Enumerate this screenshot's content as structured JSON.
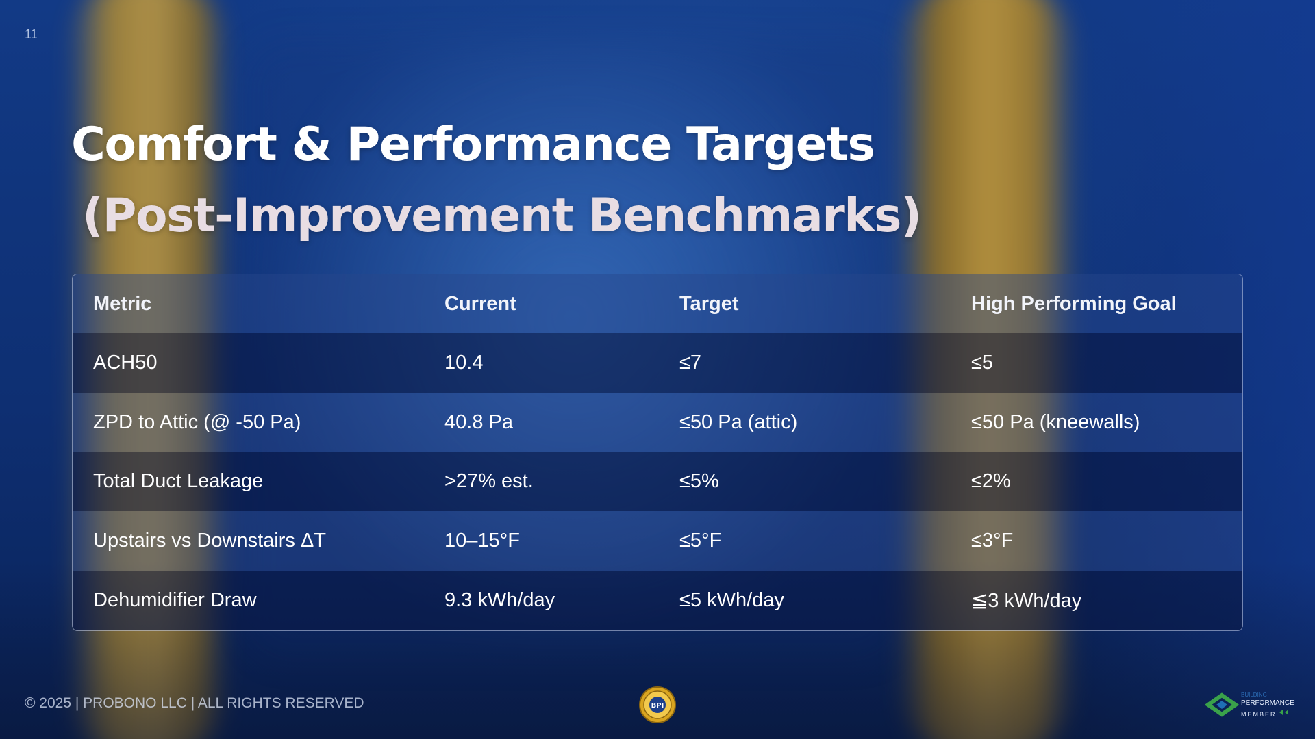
{
  "page": {
    "number": "11"
  },
  "title": {
    "line1": "Comfort & Performance Targets",
    "line2": "(Post-Improvement Benchmarks)"
  },
  "table": {
    "headers": [
      "Metric",
      "Current",
      "Target",
      "High Performing Goal"
    ],
    "rows": [
      [
        "ACH50",
        "10.4",
        "≤7",
        "≤5"
      ],
      [
        "ZPD to Attic (@ -50 Pa)",
        "40.8 Pa",
        "≤50 Pa (attic)",
        "≤50 Pa (kneewalls)"
      ],
      [
        "Total Duct Leakage",
        ">27% est.",
        "≤5%",
        "≤2%"
      ],
      [
        "Upstairs vs Downstairs ΔT",
        "10–15°F",
        "≤5°F",
        "≤3°F"
      ],
      [
        "Dehumidifier Draw",
        "9.3 kWh/day",
        "≤5 kWh/day",
        "≦3 kWh/day"
      ]
    ]
  },
  "footer": {
    "copyright": "© 2025 | PROBONO LLC | ALL RIGHTS RESERVED",
    "center_badge_text": "BPI",
    "member_logo": {
      "line1": "BUILDING",
      "line2": "PERFORMANCE",
      "line3": "MEMBER"
    }
  },
  "colors": {
    "background": "#0d2c6e",
    "title_line1": "#ffffff",
    "title_line2": "#e8dde3",
    "badge_gold": "#d9a520",
    "logo_green": "#3aa24a"
  },
  "icons": [
    "bpi-seal-icon",
    "building-performance-member-logo"
  ]
}
